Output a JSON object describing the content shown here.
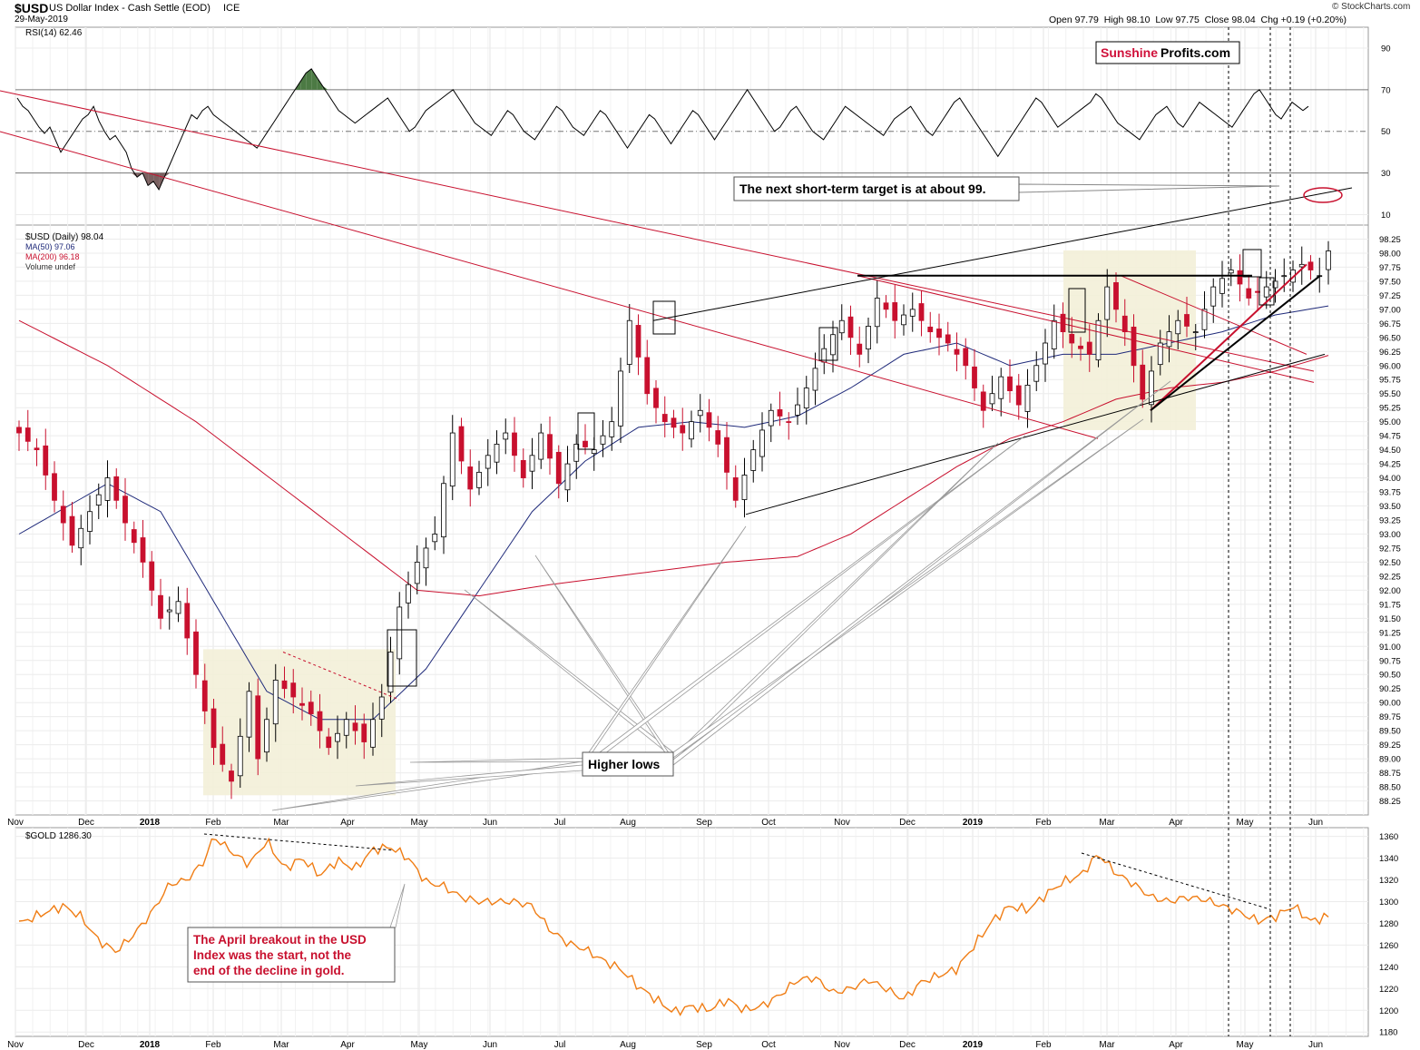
{
  "header": {
    "symbol": "$USD",
    "name": "US Dollar Index - Cash Settle (EOD)",
    "exchange": "ICE",
    "date": "29-May-2019",
    "ohlc": "Open 97.79  High 98.10  Low 97.75  Close 98.04  Chg +0.19 (+0.20%)",
    "credit": "© StockCharts.com"
  },
  "brand": {
    "part1": "Sunshine",
    "part2": "Profits.com",
    "color1": "#d0103a",
    "color2": "#000000"
  },
  "annotations": {
    "target": "The next short-term target is at about 99.",
    "higher_lows": "Higher lows",
    "gold_note_l1": "The April breakout in the USD",
    "gold_note_l2": "Index was the start, not the",
    "gold_note_l3": "end of the decline in gold."
  },
  "colors": {
    "up_candle": "#000000",
    "down_candle": "#c8102e",
    "ma50": "#1f2a7a",
    "ma200": "#c8102e",
    "gold": "#f07d14",
    "rsi": "#000000",
    "rsi_over": "#4c7a44",
    "rsi_under": "#7a6060",
    "consolidation": "#f3f0d8"
  },
  "chart_data": [
    {
      "type": "line",
      "title": "RSI(14) 62.46",
      "series": [
        {
          "name": "RSI(14)",
          "last": 62.46
        }
      ],
      "y_ticks": [
        10,
        30,
        50,
        70,
        90
      ],
      "reference_lines": [
        30,
        50,
        70
      ],
      "ylim": [
        5,
        100
      ],
      "points": [
        66,
        62,
        60,
        56,
        52,
        49,
        52,
        46,
        40,
        44,
        48,
        52,
        56,
        58,
        62,
        55,
        50,
        46,
        48,
        44,
        40,
        32,
        28,
        30,
        24,
        26,
        22,
        28,
        34,
        40,
        46,
        52,
        58,
        56,
        60,
        62,
        58,
        56,
        54,
        52,
        50,
        48,
        46,
        44,
        42,
        46,
        50,
        54,
        58,
        62,
        66,
        70,
        74,
        78,
        80,
        76,
        72,
        68,
        64,
        60,
        58,
        56,
        54,
        56,
        58,
        60,
        62,
        64,
        66,
        62,
        58,
        54,
        50,
        52,
        56,
        60,
        62,
        64,
        66,
        68,
        70,
        66,
        62,
        58,
        54,
        52,
        50,
        48,
        52,
        56,
        60,
        58,
        54,
        50,
        48,
        46,
        50,
        54,
        58,
        62,
        60,
        56,
        52,
        50,
        48,
        52,
        56,
        60,
        58,
        54,
        50,
        46,
        42,
        46,
        50,
        54,
        58,
        56,
        52,
        48,
        44,
        48,
        52,
        56,
        60,
        58,
        54,
        50,
        46,
        50,
        54,
        58,
        62,
        66,
        70,
        66,
        62,
        58,
        54,
        50,
        52,
        56,
        60,
        62,
        58,
        54,
        50,
        48,
        46,
        50,
        54,
        58,
        62,
        60,
        58,
        56,
        54,
        52,
        50,
        48,
        52,
        56,
        58,
        60,
        62,
        58,
        54,
        50,
        48,
        52,
        56,
        60,
        64,
        66,
        62,
        58,
        54,
        50,
        46,
        42,
        38,
        42,
        46,
        50,
        54,
        58,
        62,
        66,
        64,
        60,
        56,
        52,
        54,
        56,
        58,
        60,
        62,
        64,
        68,
        66,
        62,
        58,
        54,
        52,
        50,
        48,
        46,
        50,
        54,
        58,
        60,
        62,
        58,
        54,
        52,
        56,
        60,
        64,
        62,
        60,
        58,
        56,
        54,
        52,
        56,
        60,
        64,
        68,
        70,
        66,
        62,
        58,
        56,
        60,
        64,
        62,
        60,
        62
      ]
    },
    {
      "type": "line",
      "title": "$USD (Daily) 98.04",
      "xlabel": "",
      "ylabel": "",
      "x_ticks": [
        "Nov",
        "Dec",
        "2018",
        "Feb",
        "Mar",
        "Apr",
        "May",
        "Jun",
        "Jul",
        "Aug",
        "Sep",
        "Oct",
        "Nov",
        "Dec",
        "2019",
        "Feb",
        "Mar",
        "Apr",
        "May",
        "Jun"
      ],
      "y_ticks": [
        88.25,
        88.5,
        88.75,
        89.0,
        89.25,
        89.5,
        89.75,
        90.0,
        90.25,
        90.5,
        90.75,
        91.0,
        91.25,
        91.5,
        91.75,
        92.0,
        92.25,
        92.5,
        92.75,
        93.0,
        93.25,
        93.5,
        93.75,
        94.0,
        94.25,
        94.5,
        94.75,
        95.0,
        95.25,
        95.5,
        95.75,
        96.0,
        96.25,
        96.5,
        96.75,
        97.0,
        97.25,
        97.5,
        97.75,
        98.0,
        98.25
      ],
      "ylim": [
        88.0,
        98.5
      ],
      "legend": [
        "$USD (Daily) 98.04",
        "MA(50) 97.06",
        "MA(200) 96.18",
        "Volume undef"
      ],
      "legend_placement": "top-left",
      "series": [
        {
          "name": "$USD (Daily)",
          "last": 98.04,
          "anchors": [
            [
              0,
              94.8
            ],
            [
              2,
              94.5
            ],
            [
              4,
              93.6
            ],
            [
              6,
              92.8
            ],
            [
              8,
              93.4
            ],
            [
              10,
              94.0
            ],
            [
              12,
              93.2
            ],
            [
              14,
              92.5
            ],
            [
              16,
              91.5
            ],
            [
              18,
              91.8
            ],
            [
              20,
              90.5
            ],
            [
              22,
              89.2
            ],
            [
              24,
              88.6
            ],
            [
              26,
              90.2
            ],
            [
              27,
              89.0
            ],
            [
              29,
              90.4
            ],
            [
              31,
              90.1
            ],
            [
              33,
              89.8
            ],
            [
              35,
              89.2
            ],
            [
              37,
              89.7
            ],
            [
              39,
              89.3
            ],
            [
              41,
              90.1
            ],
            [
              43,
              91.7
            ],
            [
              45,
              92.5
            ],
            [
              47,
              93.0
            ],
            [
              49,
              94.8
            ],
            [
              51,
              93.8
            ],
            [
              53,
              94.4
            ],
            [
              55,
              94.8
            ],
            [
              57,
              94.0
            ],
            [
              59,
              94.8
            ],
            [
              61,
              93.9
            ],
            [
              63,
              94.6
            ],
            [
              65,
              94.5
            ],
            [
              67,
              95.0
            ],
            [
              69,
              96.8
            ],
            [
              71,
              95.5
            ],
            [
              73,
              95.0
            ],
            [
              75,
              94.8
            ],
            [
              77,
              95.2
            ],
            [
              79,
              94.6
            ],
            [
              81,
              93.6
            ],
            [
              83,
              94.5
            ],
            [
              85,
              95.2
            ],
            [
              87,
              95.0
            ],
            [
              89,
              95.6
            ],
            [
              91,
              96.3
            ],
            [
              93,
              96.8
            ],
            [
              95,
              96.2
            ],
            [
              97,
              97.2
            ],
            [
              99,
              96.8
            ],
            [
              101,
              97.0
            ],
            [
              103,
              96.6
            ],
            [
              105,
              96.4
            ],
            [
              107,
              96.0
            ],
            [
              109,
              95.2
            ],
            [
              111,
              95.8
            ],
            [
              113,
              95.3
            ],
            [
              115,
              96.0
            ],
            [
              117,
              96.8
            ],
            [
              119,
              96.4
            ],
            [
              121,
              96.2
            ],
            [
              123,
              97.4
            ],
            [
              125,
              96.6
            ],
            [
              127,
              95.4
            ],
            [
              129,
              96.4
            ],
            [
              131,
              96.8
            ],
            [
              133,
              96.6
            ],
            [
              135,
              97.4
            ],
            [
              137,
              97.7
            ],
            [
              139,
              97.2
            ],
            [
              141,
              97.4
            ],
            [
              143,
              97.6
            ],
            [
              145,
              97.8
            ],
            [
              147,
              97.6
            ],
            [
              148,
              98.04
            ]
          ]
        },
        {
          "name": "MA(50)",
          "last": 97.06,
          "anchors": [
            [
              0,
              93.0
            ],
            [
              10,
              93.9
            ],
            [
              16,
              93.4
            ],
            [
              22,
              91.8
            ],
            [
              28,
              90.2
            ],
            [
              34,
              89.7
            ],
            [
              40,
              89.7
            ],
            [
              46,
              90.6
            ],
            [
              52,
              92.0
            ],
            [
              58,
              93.4
            ],
            [
              64,
              94.3
            ],
            [
              70,
              94.9
            ],
            [
              76,
              95.0
            ],
            [
              82,
              94.9
            ],
            [
              88,
              95.1
            ],
            [
              94,
              95.6
            ],
            [
              100,
              96.2
            ],
            [
              106,
              96.4
            ],
            [
              112,
              96.0
            ],
            [
              118,
              96.2
            ],
            [
              124,
              96.2
            ],
            [
              130,
              96.4
            ],
            [
              136,
              96.6
            ],
            [
              142,
              96.9
            ],
            [
              148,
              97.06
            ]
          ]
        },
        {
          "name": "MA(200)",
          "last": 96.18,
          "anchors": [
            [
              0,
              96.8
            ],
            [
              10,
              96.0
            ],
            [
              20,
              95.0
            ],
            [
              30,
              93.8
            ],
            [
              40,
              92.6
            ],
            [
              45,
              92.0
            ],
            [
              52,
              91.9
            ],
            [
              60,
              92.1
            ],
            [
              70,
              92.3
            ],
            [
              80,
              92.5
            ],
            [
              88,
              92.6
            ],
            [
              94,
              93.0
            ],
            [
              100,
              93.6
            ],
            [
              106,
              94.2
            ],
            [
              112,
              94.7
            ],
            [
              118,
              95.0
            ],
            [
              124,
              95.4
            ],
            [
              130,
              95.6
            ],
            [
              136,
              95.7
            ],
            [
              142,
              95.9
            ],
            [
              148,
              96.18
            ]
          ]
        }
      ]
    },
    {
      "type": "line",
      "title": "$GOLD 1286.30",
      "x_ticks": [
        "Nov",
        "Dec",
        "2018",
        "Feb",
        "Mar",
        "Apr",
        "May",
        "Jun",
        "Jul",
        "Aug",
        "Sep",
        "Oct",
        "Nov",
        "Dec",
        "2019",
        "Feb",
        "Mar",
        "Apr",
        "May",
        "Jun"
      ],
      "y_ticks": [
        1180,
        1200,
        1220,
        1240,
        1260,
        1280,
        1300,
        1320,
        1340,
        1360
      ],
      "ylim": [
        1176,
        1368
      ],
      "series": [
        {
          "name": "$GOLD",
          "last": 1286.3,
          "anchors": [
            [
              0,
              1280
            ],
            [
              3,
              1290
            ],
            [
              5,
              1296
            ],
            [
              7,
              1286
            ],
            [
              9,
              1264
            ],
            [
              11,
              1254
            ],
            [
              13,
              1270
            ],
            [
              15,
              1290
            ],
            [
              17,
              1316
            ],
            [
              19,
              1320
            ],
            [
              21,
              1338
            ],
            [
              22,
              1360
            ],
            [
              24,
              1346
            ],
            [
              26,
              1334
            ],
            [
              28,
              1356
            ],
            [
              30,
              1330
            ],
            [
              32,
              1340
            ],
            [
              34,
              1324
            ],
            [
              36,
              1338
            ],
            [
              38,
              1330
            ],
            [
              40,
              1348
            ],
            [
              42,
              1350
            ],
            [
              44,
              1340
            ],
            [
              46,
              1318
            ],
            [
              48,
              1314
            ],
            [
              50,
              1304
            ],
            [
              52,
              1300
            ],
            [
              54,
              1300
            ],
            [
              56,
              1300
            ],
            [
              58,
              1296
            ],
            [
              60,
              1274
            ],
            [
              62,
              1262
            ],
            [
              64,
              1256
            ],
            [
              66,
              1246
            ],
            [
              68,
              1238
            ],
            [
              70,
              1222
            ],
            [
              72,
              1210
            ],
            [
              74,
              1198
            ],
            [
              76,
              1204
            ],
            [
              78,
              1200
            ],
            [
              80,
              1210
            ],
            [
              82,
              1200
            ],
            [
              84,
              1204
            ],
            [
              86,
              1214
            ],
            [
              88,
              1228
            ],
            [
              90,
              1230
            ],
            [
              92,
              1216
            ],
            [
              94,
              1220
            ],
            [
              96,
              1228
            ],
            [
              98,
              1220
            ],
            [
              100,
              1210
            ],
            [
              102,
              1226
            ],
            [
              104,
              1232
            ],
            [
              106,
              1238
            ],
            [
              108,
              1260
            ],
            [
              110,
              1282
            ],
            [
              112,
              1296
            ],
            [
              114,
              1292
            ],
            [
              116,
              1306
            ],
            [
              118,
              1318
            ],
            [
              120,
              1324
            ],
            [
              122,
              1344
            ],
            [
              124,
              1326
            ],
            [
              126,
              1316
            ],
            [
              128,
              1304
            ],
            [
              130,
              1300
            ],
            [
              132,
              1304
            ],
            [
              134,
              1302
            ],
            [
              136,
              1296
            ],
            [
              138,
              1290
            ],
            [
              140,
              1282
            ],
            [
              142,
              1286
            ],
            [
              144,
              1296
            ],
            [
              146,
              1282
            ],
            [
              148,
              1286.3
            ]
          ]
        }
      ]
    }
  ]
}
